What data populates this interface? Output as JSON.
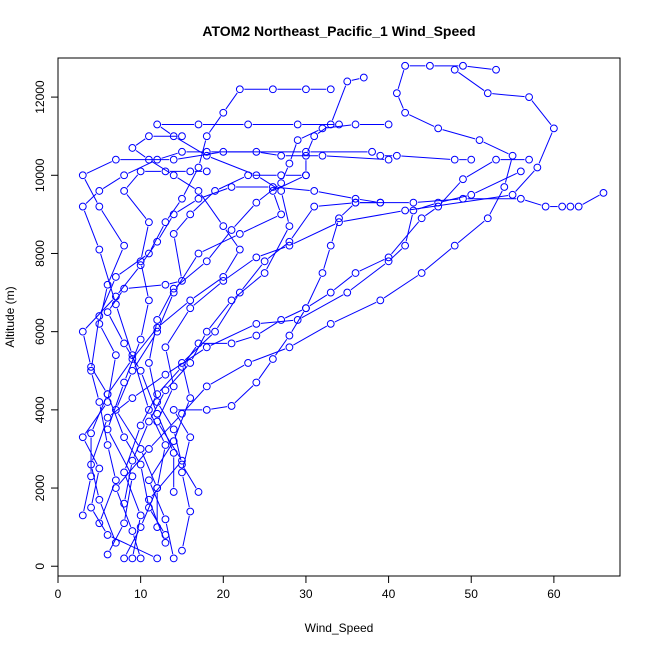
{
  "chart_data": {
    "type": "line",
    "title": "ATOM2 Northeast_Pacific_1 Wind_Speed",
    "xlabel": "Wind_Speed",
    "ylabel": "Altitude (m)",
    "xlim": [
      0,
      68
    ],
    "ylim": [
      -250,
      13000
    ],
    "xticks": [
      0,
      10,
      20,
      30,
      40,
      50,
      60
    ],
    "yticks": [
      0,
      2000,
      4000,
      6000,
      8000,
      10000,
      12000
    ],
    "grid": false,
    "legend": "none",
    "colors": {
      "series": "#0000ff"
    },
    "series": [
      {
        "points": [
          [
            8,
            200
          ],
          [
            10,
            1000
          ],
          [
            12,
            2000
          ],
          [
            10,
            3000
          ],
          [
            7,
            4000
          ],
          [
            9,
            5000
          ],
          [
            12,
            6000
          ],
          [
            14,
            7000
          ],
          [
            17,
            8000
          ],
          [
            22,
            8500
          ],
          [
            27,
            9000
          ],
          [
            26,
            9600
          ],
          [
            30,
            10000
          ],
          [
            30,
            10500
          ],
          [
            31,
            11000
          ],
          [
            33,
            11300
          ],
          [
            35,
            12400
          ],
          [
            37,
            12500
          ]
        ]
      },
      {
        "points": [
          [
            12,
            200
          ],
          [
            6,
            800
          ],
          [
            4,
            1500
          ],
          [
            5,
            2500
          ],
          [
            3,
            3300
          ],
          [
            6,
            4200
          ],
          [
            7,
            5400
          ],
          [
            5,
            6200
          ],
          [
            6,
            7200
          ],
          [
            8,
            8200
          ],
          [
            5,
            9200
          ],
          [
            3,
            10000
          ],
          [
            7,
            10400
          ],
          [
            14,
            10400
          ],
          [
            20,
            10600
          ],
          [
            30,
            10600
          ],
          [
            38,
            10600
          ],
          [
            39,
            10500
          ],
          [
            41,
            10500
          ],
          [
            48,
            10400
          ],
          [
            50,
            10400
          ]
        ]
      },
      {
        "points": [
          [
            14,
            200
          ],
          [
            13,
            1200
          ],
          [
            11,
            2200
          ],
          [
            14,
            3200
          ],
          [
            16,
            4300
          ],
          [
            15,
            5200
          ],
          [
            19,
            6000
          ],
          [
            22,
            7000
          ],
          [
            25,
            7800
          ],
          [
            28,
            8300
          ],
          [
            31,
            9200
          ],
          [
            36,
            9300
          ],
          [
            43,
            9300
          ],
          [
            49,
            9400
          ],
          [
            56,
            9400
          ],
          [
            59,
            9200
          ],
          [
            61,
            9200
          ],
          [
            62,
            9200
          ],
          [
            63,
            9200
          ],
          [
            66,
            9550
          ]
        ]
      },
      {
        "points": [
          [
            6,
            300
          ],
          [
            8,
            1100
          ],
          [
            9,
            2300
          ],
          [
            6,
            3500
          ],
          [
            8,
            4700
          ],
          [
            10,
            5800
          ],
          [
            11,
            6800
          ],
          [
            10,
            7800
          ],
          [
            11,
            8800
          ],
          [
            8,
            9600
          ],
          [
            10,
            10100
          ],
          [
            13,
            10100
          ],
          [
            16,
            10100
          ],
          [
            18,
            10100
          ]
        ]
      },
      {
        "points": [
          [
            13,
            600
          ],
          [
            11,
            1700
          ],
          [
            15,
            2700
          ],
          [
            12,
            3700
          ],
          [
            14,
            4600
          ],
          [
            13,
            5600
          ],
          [
            16,
            6600
          ],
          [
            20,
            7300
          ],
          [
            24,
            7900
          ],
          [
            28,
            8200
          ],
          [
            34,
            8800
          ],
          [
            42,
            9100
          ],
          [
            55,
            9500
          ],
          [
            58,
            10200
          ],
          [
            60,
            11200
          ],
          [
            57,
            12000
          ],
          [
            52,
            12100
          ],
          [
            48,
            12700
          ]
        ]
      },
      {
        "points": [
          [
            10,
            200
          ],
          [
            9,
            900
          ],
          [
            7,
            2000
          ],
          [
            11,
            3000
          ],
          [
            15,
            3900
          ],
          [
            18,
            4600
          ],
          [
            23,
            5200
          ],
          [
            28,
            5600
          ],
          [
            33,
            6200
          ],
          [
            39,
            6800
          ],
          [
            44,
            7500
          ],
          [
            48,
            8200
          ],
          [
            52,
            8900
          ],
          [
            54,
            9700
          ],
          [
            55,
            10500
          ],
          [
            51,
            10900
          ],
          [
            46,
            11200
          ],
          [
            42,
            11600
          ],
          [
            41,
            12100
          ],
          [
            42,
            12800
          ],
          [
            45,
            12800
          ],
          [
            49,
            12800
          ],
          [
            53,
            12700
          ]
        ]
      },
      {
        "points": [
          [
            9,
            200
          ],
          [
            10,
            1300
          ],
          [
            8,
            2400
          ],
          [
            10,
            3600
          ],
          [
            12,
            4400
          ],
          [
            15,
            5100
          ],
          [
            17,
            5700
          ],
          [
            21,
            5700
          ],
          [
            24,
            5900
          ],
          [
            27,
            6300
          ],
          [
            30,
            6600
          ],
          [
            33,
            7000
          ],
          [
            36,
            7500
          ],
          [
            40,
            7900
          ],
          [
            44,
            8900
          ],
          [
            46,
            9200
          ],
          [
            49,
            9900
          ],
          [
            53,
            10400
          ],
          [
            57,
            10400
          ]
        ]
      },
      {
        "points": [
          [
            7,
            600
          ],
          [
            5,
            1700
          ],
          [
            4,
            2600
          ],
          [
            6,
            3800
          ],
          [
            9,
            4300
          ],
          [
            13,
            4900
          ],
          [
            18,
            5600
          ],
          [
            24,
            6200
          ],
          [
            29,
            6300
          ],
          [
            35,
            7000
          ],
          [
            40,
            7800
          ],
          [
            42,
            8200
          ],
          [
            43,
            9100
          ],
          [
            46,
            9300
          ],
          [
            50,
            9500
          ],
          [
            56,
            10100
          ]
        ]
      },
      {
        "points": [
          [
            12,
            1000
          ],
          [
            12,
            2000
          ],
          [
            13,
            3100
          ],
          [
            11,
            4000
          ],
          [
            9,
            5400
          ],
          [
            7,
            6700
          ],
          [
            5,
            8100
          ],
          [
            3,
            9200
          ],
          [
            5,
            9600
          ],
          [
            8,
            10000
          ],
          [
            12,
            10400
          ],
          [
            15,
            10600
          ],
          [
            18,
            10600
          ],
          [
            24,
            10600
          ],
          [
            27,
            10500
          ],
          [
            32,
            10500
          ],
          [
            40,
            10400
          ]
        ]
      },
      {
        "points": [
          [
            8,
            1600
          ],
          [
            9,
            2700
          ],
          [
            11,
            3700
          ],
          [
            13,
            4500
          ],
          [
            16,
            5200
          ],
          [
            18,
            6000
          ],
          [
            21,
            6800
          ],
          [
            25,
            7500
          ],
          [
            28,
            8700
          ],
          [
            27,
            9600
          ],
          [
            24,
            10000
          ],
          [
            18,
            10500
          ],
          [
            14,
            11000
          ],
          [
            12,
            11300
          ],
          [
            17,
            11300
          ],
          [
            23,
            11300
          ],
          [
            29,
            11300
          ],
          [
            34,
            11300
          ]
        ]
      },
      {
        "points": [
          [
            14,
            1900
          ],
          [
            14,
            2900
          ],
          [
            12,
            3900
          ],
          [
            10,
            5000
          ],
          [
            8,
            5700
          ],
          [
            6,
            6500
          ],
          [
            8,
            7100
          ],
          [
            13,
            7200
          ],
          [
            15,
            7300
          ],
          [
            14,
            8500
          ],
          [
            16,
            9000
          ],
          [
            19,
            9600
          ],
          [
            23,
            10000
          ],
          [
            27,
            10000
          ],
          [
            30,
            10000
          ]
        ]
      },
      {
        "points": [
          [
            13,
            800
          ],
          [
            11,
            1500
          ],
          [
            10,
            2600
          ],
          [
            8,
            3300
          ],
          [
            6,
            4400
          ],
          [
            4,
            5100
          ],
          [
            3,
            6000
          ],
          [
            7,
            6900
          ],
          [
            10,
            7700
          ],
          [
            12,
            8300
          ],
          [
            14,
            9000
          ],
          [
            17,
            9400
          ],
          [
            21,
            9700
          ],
          [
            26,
            9700
          ],
          [
            31,
            9600
          ],
          [
            36,
            9400
          ],
          [
            39,
            9300
          ]
        ]
      },
      {
        "points": [
          [
            17,
            1900
          ],
          [
            15,
            2600
          ],
          [
            14,
            3500
          ],
          [
            12,
            4200
          ],
          [
            11,
            5200
          ],
          [
            12,
            6300
          ],
          [
            14,
            7100
          ],
          [
            18,
            7800
          ],
          [
            21,
            8600
          ],
          [
            24,
            9300
          ],
          [
            27,
            9800
          ],
          [
            28,
            10300
          ],
          [
            29,
            10900
          ],
          [
            32,
            11200
          ],
          [
            36,
            11300
          ],
          [
            40,
            11300
          ]
        ]
      },
      {
        "points": [
          [
            5,
            1100
          ],
          [
            7,
            2200
          ],
          [
            6,
            3100
          ],
          [
            5,
            4200
          ],
          [
            4,
            5000
          ],
          [
            5,
            6400
          ],
          [
            7,
            7400
          ],
          [
            11,
            8000
          ],
          [
            13,
            8800
          ],
          [
            15,
            9400
          ],
          [
            17,
            10200
          ],
          [
            18,
            11000
          ],
          [
            20,
            11600
          ],
          [
            22,
            12200
          ],
          [
            26,
            12200
          ],
          [
            30,
            12200
          ],
          [
            33,
            12200
          ]
        ]
      },
      {
        "points": [
          [
            3,
            1300
          ],
          [
            4,
            2300
          ],
          [
            4,
            3400
          ],
          [
            6,
            4400
          ],
          [
            9,
            5300
          ],
          [
            12,
            6100
          ],
          [
            16,
            6800
          ],
          [
            20,
            7400
          ],
          [
            22,
            8100
          ],
          [
            20,
            8700
          ],
          [
            17,
            9600
          ],
          [
            14,
            10000
          ],
          [
            11,
            10400
          ],
          [
            9,
            10700
          ],
          [
            11,
            11000
          ],
          [
            15,
            11000
          ]
        ]
      },
      {
        "points": [
          [
            15,
            400
          ],
          [
            16,
            1400
          ],
          [
            15,
            2400
          ],
          [
            16,
            3300
          ],
          [
            14,
            4000
          ],
          [
            18,
            4000
          ],
          [
            21,
            4100
          ],
          [
            24,
            4700
          ],
          [
            26,
            5300
          ],
          [
            28,
            5900
          ],
          [
            30,
            6600
          ],
          [
            32,
            7500
          ],
          [
            33,
            8200
          ],
          [
            34,
            8900
          ],
          [
            36,
            9300
          ],
          [
            39,
            9300
          ]
        ]
      }
    ]
  }
}
